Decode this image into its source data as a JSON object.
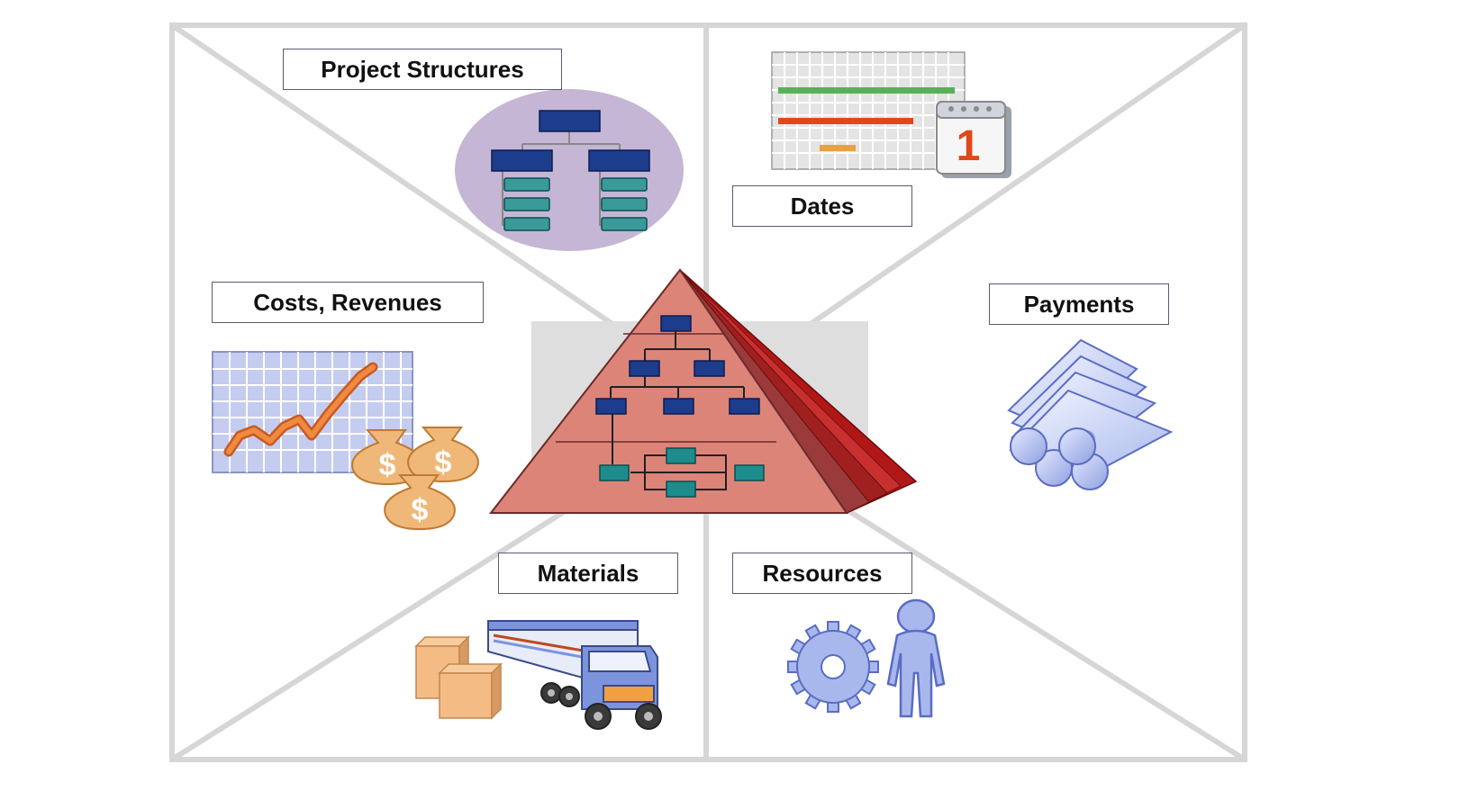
{
  "labels": {
    "project_structures": "Project Structures",
    "dates": "Dates",
    "costs_revenues": "Costs, Revenues",
    "payments": "Payments",
    "materials": "Materials",
    "resources": "Resources"
  },
  "calendar_day": "1",
  "currency_symbol": "$",
  "colors": {
    "frame": "#d6d6d6",
    "pyramid": "#dc8478",
    "pyramid_dark": "#b01818",
    "node_blue": "#1c3c8c",
    "node_teal": "#1e8c8c",
    "ellipse": "#c4b6d4",
    "money_bag": "#f0b878",
    "trend_line": "#ee7a30",
    "box": "#f4bc84",
    "truck_blue": "#7c94dc",
    "steel_blue": "#a8b8ec"
  }
}
